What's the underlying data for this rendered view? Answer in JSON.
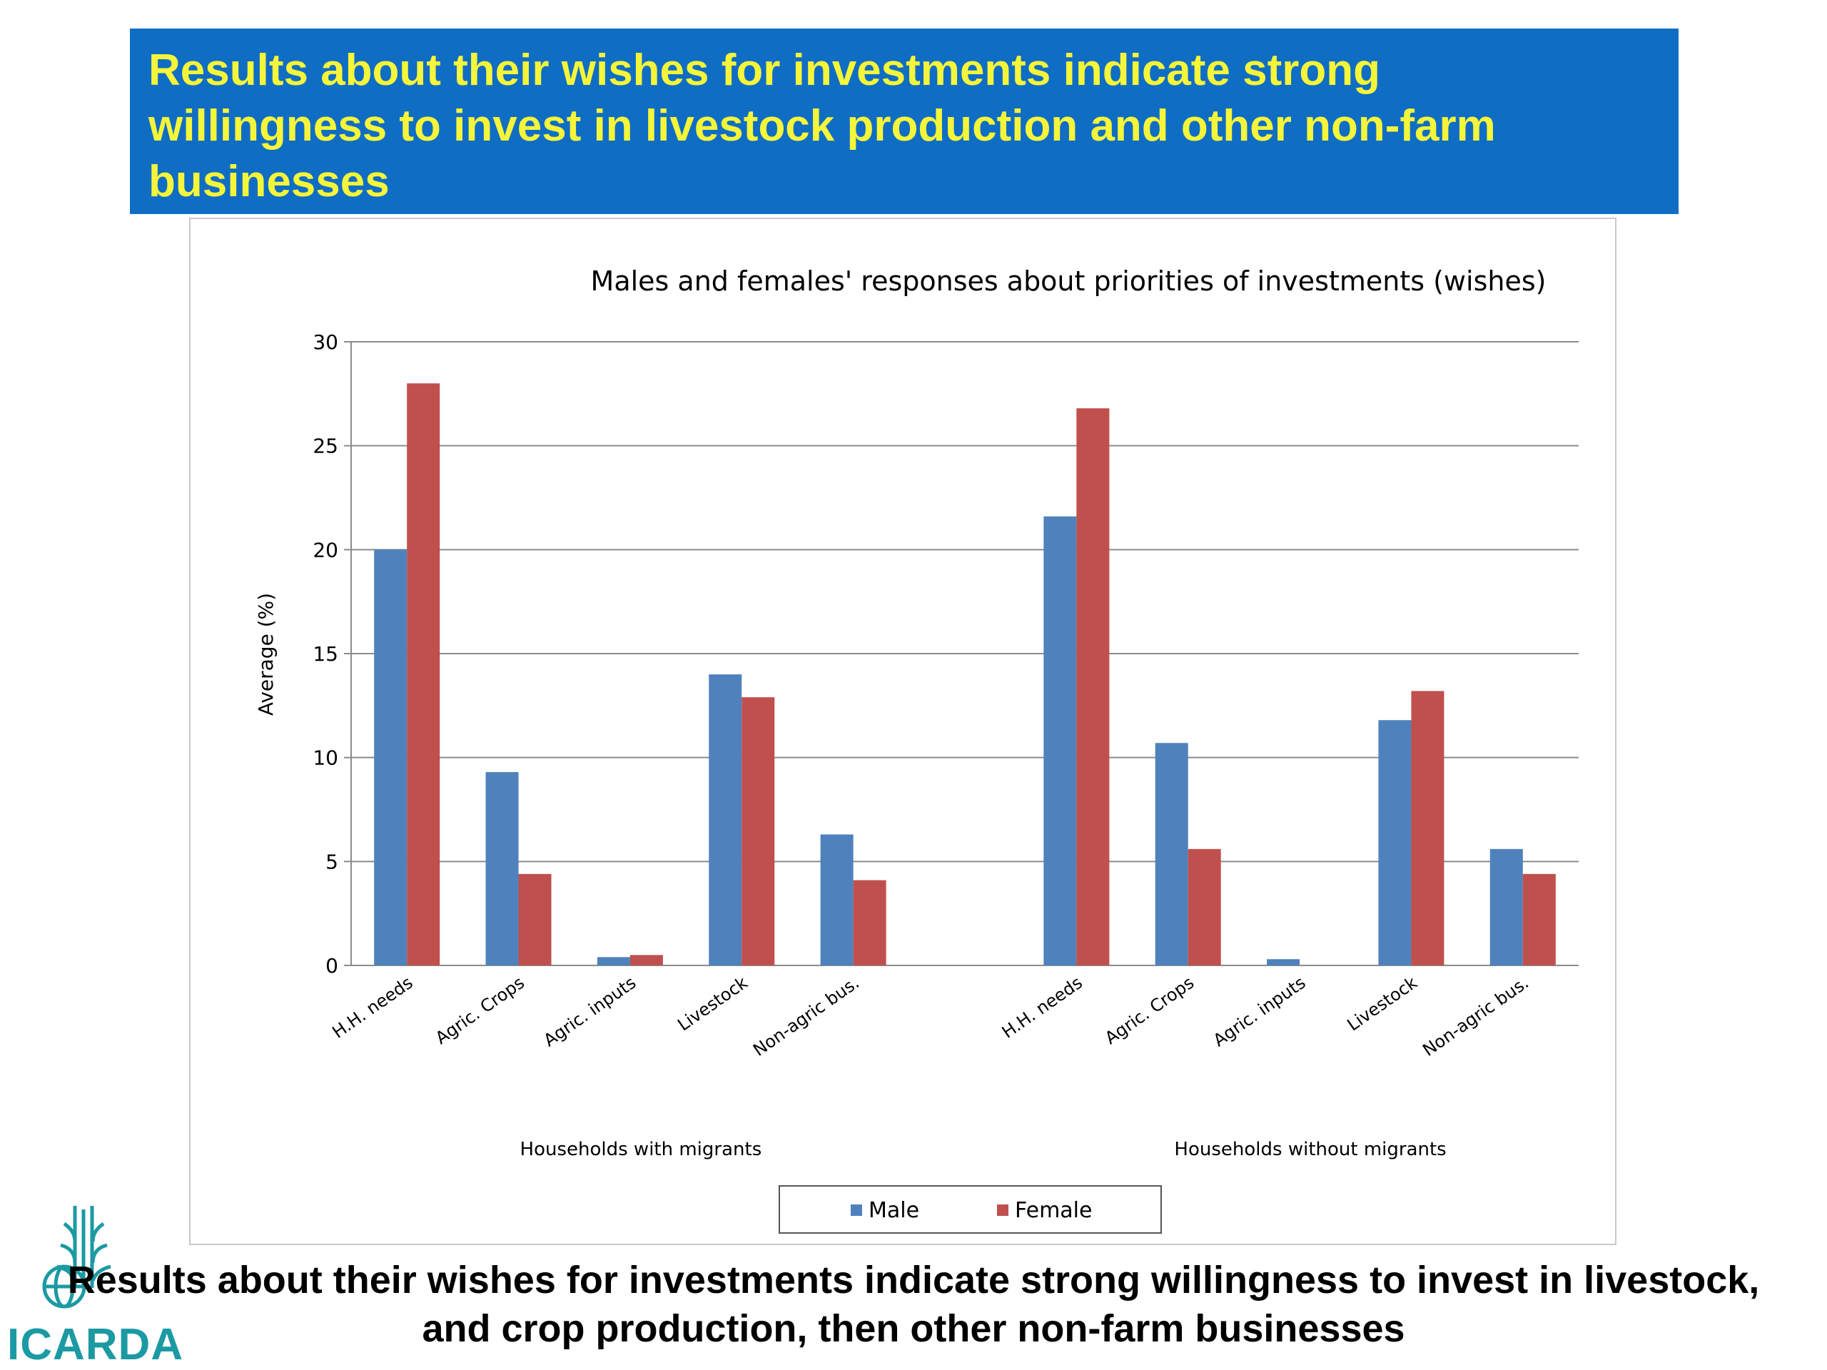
{
  "banner": {
    "text": "Results about their wishes for investments indicate strong\nwillingness to invest in livestock production and other non-farm\nbusinesses"
  },
  "footer": {
    "text": "Results about their wishes for investments indicate strong willingness to invest in livestock,\nand crop production, then other non-farm businesses"
  },
  "logo": {
    "text": "ICARDA",
    "icon": "wheat-globe-icon"
  },
  "colors": {
    "banner_bg": "#0f6dc4",
    "banner_text": "#f5f53a",
    "male": "#4f81bd",
    "female": "#c0504d",
    "logo": "#1b9aa3"
  },
  "chart_data": {
    "type": "bar",
    "title": "Males and females' responses about priorities of investments (wishes)",
    "ylabel": "Average (%)",
    "ylim": [
      0,
      30
    ],
    "yticks": [
      0,
      5,
      10,
      15,
      20,
      25,
      30
    ],
    "grid": true,
    "legend_position": "bottom",
    "groups": [
      {
        "label": "Households with migrants",
        "categories": [
          "H.H. needs",
          "Agric. Crops",
          "Agric. inputs",
          "Livestock",
          "Non-agric bus."
        ],
        "series": [
          {
            "name": "Male",
            "values": [
              20.0,
              9.3,
              0.4,
              14.0,
              6.3
            ]
          },
          {
            "name": "Female",
            "values": [
              28.0,
              4.4,
              0.5,
              12.9,
              4.1
            ]
          }
        ]
      },
      {
        "label": "Households without migrants",
        "categories": [
          "H.H. needs",
          "Agric. Crops",
          "Agric. inputs",
          "Livestock",
          "Non-agric bus."
        ],
        "series": [
          {
            "name": "Male",
            "values": [
              21.6,
              10.7,
              0.3,
              11.8,
              5.6
            ]
          },
          {
            "name": "Female",
            "values": [
              26.8,
              5.6,
              0.0,
              13.2,
              4.4
            ]
          }
        ]
      }
    ]
  }
}
